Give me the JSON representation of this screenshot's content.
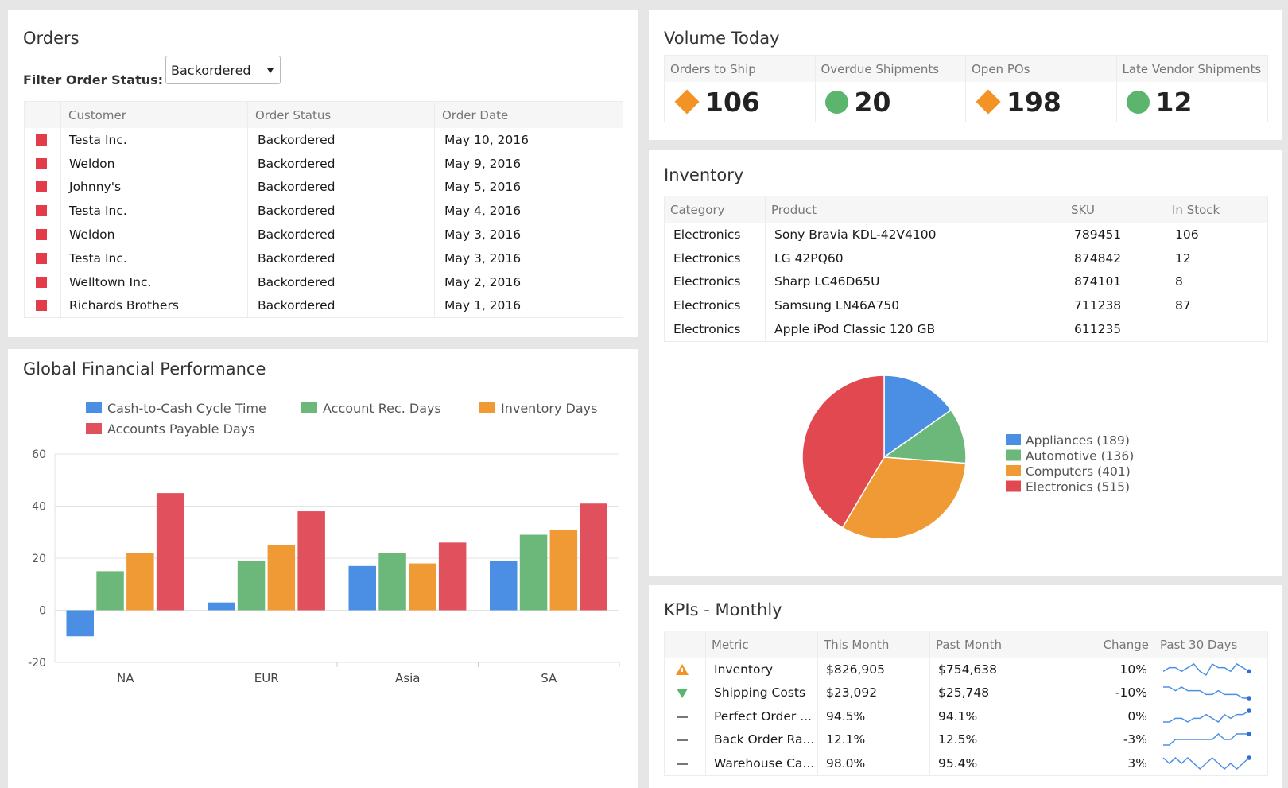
{
  "orders": {
    "title": "Orders",
    "filter_label": "Filter Order Status:",
    "filter_value": "Backordered",
    "columns": [
      "Customer",
      "Order Status",
      "Order Date"
    ],
    "rows": [
      [
        "Testa Inc.",
        "Backordered",
        "May 10, 2016"
      ],
      [
        "Weldon",
        "Backordered",
        "May 9, 2016"
      ],
      [
        "Johnny's",
        "Backordered",
        "May 5, 2016"
      ],
      [
        "Testa Inc.",
        "Backordered",
        "May 4, 2016"
      ],
      [
        "Weldon",
        "Backordered",
        "May 3, 2016"
      ],
      [
        "Testa Inc.",
        "Backordered",
        "May 3, 2016"
      ],
      [
        "Welltown Inc.",
        "Backordered",
        "May 2, 2016"
      ],
      [
        "Richards Brothers",
        "Backordered",
        "May 1, 2016"
      ]
    ]
  },
  "volume": {
    "title": "Volume Today",
    "kpis": [
      {
        "label": "Orders to Ship",
        "value": 106,
        "icon": "diamond",
        "color": "#f39325"
      },
      {
        "label": "Overdue Shipments",
        "value": 20,
        "icon": "circle",
        "color": "#5cb56c"
      },
      {
        "label": "Open POs",
        "value": 198,
        "icon": "diamond",
        "color": "#f39325"
      },
      {
        "label": "Late Vendor Shipments",
        "value": 12,
        "icon": "circle",
        "color": "#5cb56c"
      }
    ]
  },
  "inventory": {
    "title": "Inventory",
    "columns": [
      "Category",
      "Product",
      "SKU",
      "In Stock"
    ],
    "rows": [
      [
        "Electronics",
        "Sony Bravia KDL-42V4100",
        "789451",
        "106"
      ],
      [
        "Electronics",
        "LG 42PQ60",
        "874842",
        "12"
      ],
      [
        "Electronics",
        "Sharp LC46D65U",
        "874101",
        "8"
      ],
      [
        "Electronics",
        "Samsung LN46A750",
        "711238",
        "87"
      ],
      [
        "Electronics",
        "Apple iPod Classic 120 GB",
        "611235",
        ""
      ]
    ]
  },
  "kpis": {
    "title": "KPIs - Monthly",
    "columns": [
      "Metric",
      "This Month",
      "Past Month",
      "Change",
      "Past 30 Days"
    ],
    "rows": [
      {
        "status": "warning",
        "metric": "Inventory",
        "this_month": "$826,905",
        "past_month": "$754,638",
        "change": "10%",
        "trend": [
          5,
          6,
          6,
          5,
          6,
          7,
          5,
          4,
          7,
          6,
          6,
          5,
          7,
          6,
          5
        ]
      },
      {
        "status": "down",
        "metric": "Shipping Costs",
        "this_month": "$23,092",
        "past_month": "$25,748",
        "change": "-10%",
        "trend": [
          7,
          7,
          6,
          7,
          6,
          6,
          6,
          5,
          5,
          6,
          5,
          5,
          5,
          4,
          4
        ]
      },
      {
        "status": "flat",
        "metric": "Perfect Order ...",
        "this_month": "94.5%",
        "past_month": "94.1%",
        "change": "0%",
        "trend": [
          4,
          4,
          5,
          5,
          4,
          5,
          5,
          6,
          5,
          4,
          6,
          5,
          6,
          6,
          7
        ]
      },
      {
        "status": "flat",
        "metric": "Back Order Ra...",
        "this_month": "12.1%",
        "past_month": "12.5%",
        "change": "-3%",
        "trend": [
          4,
          4,
          5,
          5,
          5,
          5,
          5,
          5,
          5,
          6,
          5,
          5,
          6,
          6,
          6
        ]
      },
      {
        "status": "flat",
        "metric": "Warehouse Ca...",
        "this_month": "98.0%",
        "past_month": "95.4%",
        "change": "3%",
        "trend": [
          6,
          5,
          6,
          5,
          6,
          5,
          4,
          5,
          6,
          5,
          4,
          5,
          4,
          5,
          6
        ]
      }
    ]
  },
  "chart_data": [
    {
      "type": "bar",
      "title": "Global Financial Performance",
      "categories": [
        "NA",
        "EUR",
        "Asia",
        "SA"
      ],
      "series": [
        {
          "name": "Cash-to-Cash Cycle Time",
          "color": "#4a8fe4",
          "values": [
            -10,
            3,
            17,
            19
          ]
        },
        {
          "name": "Account Rec. Days",
          "color": "#6cb87a",
          "values": [
            15,
            19,
            22,
            29
          ]
        },
        {
          "name": "Inventory Days",
          "color": "#ef9a35",
          "values": [
            22,
            25,
            18,
            31
          ]
        },
        {
          "name": "Accounts Payable Days",
          "color": "#e1505d",
          "values": [
            45,
            38,
            26,
            41
          ]
        }
      ],
      "ylim": [
        -20,
        60
      ],
      "yticks": [
        -20,
        0,
        20,
        40,
        60
      ],
      "grid": true
    },
    {
      "type": "pie",
      "categories": [
        "Appliances",
        "Automotive",
        "Computers",
        "Electronics"
      ],
      "legend_labels": [
        "Appliances (189)",
        "Automotive (136)",
        "Computers (401)",
        "Electronics (515)"
      ],
      "values": [
        189,
        136,
        401,
        515
      ],
      "colors": [
        "#4a8fe4",
        "#6cb87a",
        "#ef9a35",
        "#e1484f"
      ]
    }
  ]
}
